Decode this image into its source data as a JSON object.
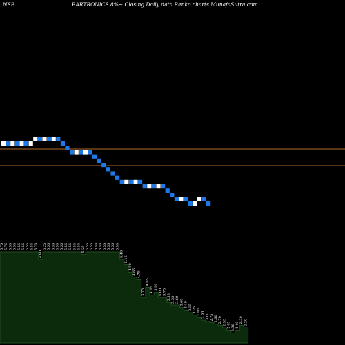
{
  "header": {
    "exchange": "NSE",
    "title": "BARTRONICS 8%~  Closing Daily data  Renko  charts MunafaSutra.com"
  },
  "colors": {
    "background": "#000000",
    "up_brick": "#ffffff",
    "down_brick": "#1e78e6",
    "reference_line": "#b06a2a",
    "area_fill": "#0c2a0c",
    "area_line": "#1f4f1f",
    "text": "#ffffff"
  },
  "chart_data": {
    "type": "renko",
    "brick_direction_sequence": [
      "up",
      "down",
      "up",
      "down",
      "up",
      "down",
      "up",
      "up",
      "down",
      "up",
      "down",
      "up",
      "down",
      "down",
      "down",
      "down",
      "up",
      "down",
      "up",
      "down",
      "down",
      "down",
      "down",
      "down",
      "down",
      "down",
      "down",
      "up",
      "down",
      "up",
      "down",
      "down",
      "up",
      "down",
      "up",
      "down",
      "down",
      "down",
      "down",
      "up",
      "down",
      "down",
      "up",
      "up",
      "down",
      "down"
    ],
    "reference_levels": [
      "upper",
      "lower"
    ],
    "volume_area": {
      "labels": [
        "5.75",
        "5.75",
        "5.55",
        "5.55",
        "5.55",
        "5.55",
        "5.55",
        "5.55",
        "5.25",
        "4.90",
        "5.25",
        "5.55",
        "5.55",
        "5.55",
        "5.55",
        "5.55",
        "5.55",
        "5.55",
        "5.55",
        "5.25",
        "5.55",
        "5.55",
        "5.55",
        "5.55",
        "5.55",
        "5.55",
        "5.55",
        "5.55",
        "5.40",
        "5.15",
        "4.90",
        "4.65",
        "4.75",
        "3.75",
        "4.05",
        "4.05",
        "3.90",
        "4.00",
        "3.75",
        "3.55",
        "3.55",
        "3.60",
        "3.60",
        "3.40",
        "3.35",
        "3.25",
        "3.10",
        "2.90",
        "3.00",
        "2.75",
        "2.60",
        "2.70",
        "2.55",
        "2.45",
        "2.30",
        "2.40",
        "2.30",
        "2.20"
      ],
      "levels": [
        0.72,
        0.72,
        0.72,
        0.72,
        0.72,
        0.72,
        0.72,
        0.72,
        0.72,
        0.66,
        0.72,
        0.72,
        0.72,
        0.72,
        0.72,
        0.72,
        0.72,
        0.72,
        0.72,
        0.7,
        0.72,
        0.72,
        0.72,
        0.72,
        0.72,
        0.72,
        0.72,
        0.72,
        0.66,
        0.62,
        0.56,
        0.52,
        0.5,
        0.36,
        0.44,
        0.38,
        0.4,
        0.36,
        0.36,
        0.32,
        0.3,
        0.3,
        0.28,
        0.26,
        0.24,
        0.22,
        0.2,
        0.18,
        0.17,
        0.16,
        0.15,
        0.14,
        0.12,
        0.1,
        0.08,
        0.1,
        0.14,
        0.12
      ]
    }
  }
}
